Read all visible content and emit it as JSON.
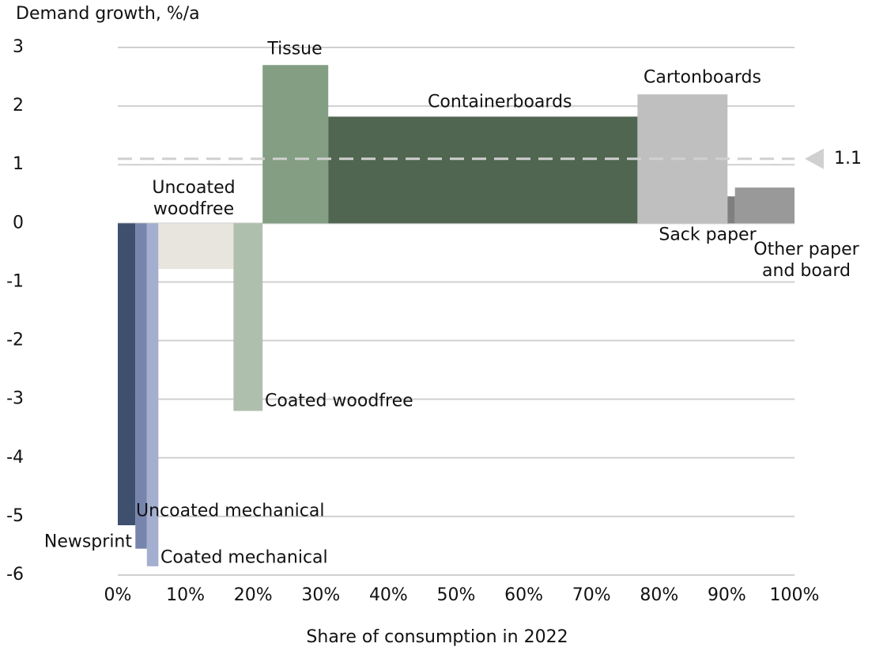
{
  "chart_data": {
    "type": "variable_width_bar",
    "y_axis_label": "Demand growth, %/a",
    "x_axis_label": "Share of consumption in 2022",
    "categories": [
      "Newsprint",
      "Uncoated mechanical",
      "Coated mechanical",
      "Uncoated woodfree",
      "Coated woodfree",
      "Tissue",
      "Containerboards",
      "Cartonboards",
      "Sack paper",
      "Other paper and board"
    ],
    "shares": [
      2.6,
      1.7,
      1.7,
      11.1,
      4.3,
      9.7,
      45.7,
      13.3,
      1.1,
      8.8
    ],
    "values": [
      -5.15,
      -5.55,
      -5.85,
      -0.78,
      -3.2,
      2.7,
      1.82,
      2.2,
      0.46,
      0.61
    ],
    "colors": [
      "#3f4f6e",
      "#7785ad",
      "#a4afd0",
      "#e8e5df",
      "#aebfae",
      "#839e83",
      "#506650",
      "#bfbfbf",
      "#7f7f7f",
      "#999999"
    ],
    "reference": {
      "value": 1.1,
      "color": "#d0d0d0"
    },
    "xlim": [
      0,
      100
    ],
    "xticks": [
      {
        "value": 0,
        "label": "0%"
      },
      {
        "value": 10,
        "label": "10%"
      },
      {
        "value": 20,
        "label": "20%"
      },
      {
        "value": 30,
        "label": "30%"
      },
      {
        "value": 40,
        "label": "40%"
      },
      {
        "value": 50,
        "label": "50%"
      },
      {
        "value": 60,
        "label": "60%"
      },
      {
        "value": 70,
        "label": "70%"
      },
      {
        "value": 80,
        "label": "80%"
      },
      {
        "value": 90,
        "label": "90%"
      },
      {
        "value": 100,
        "label": "100%"
      }
    ],
    "ylim": [
      -6,
      3
    ],
    "yticks": [
      -6,
      -5,
      -4,
      -3,
      -2,
      -1,
      0,
      1,
      2,
      3
    ],
    "grid": true
  }
}
